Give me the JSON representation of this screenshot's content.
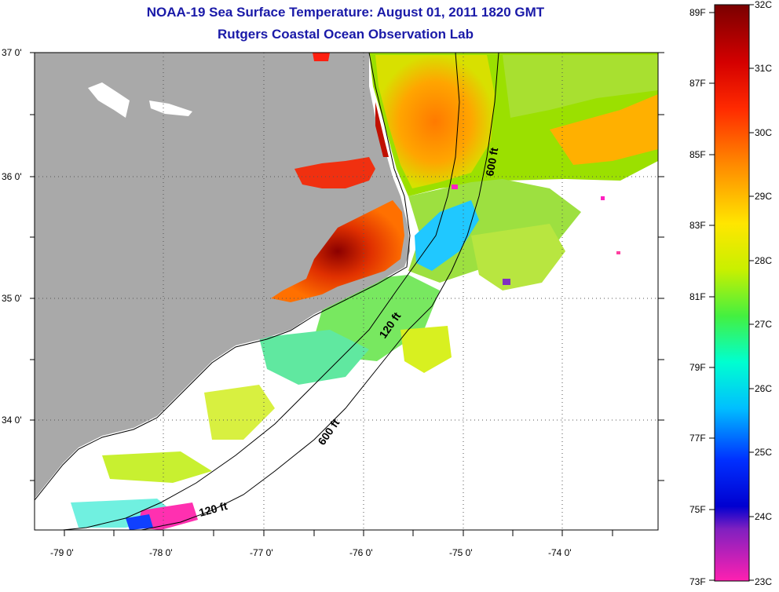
{
  "title": "NOAA-19 Sea Surface Temperature:  August 01, 2011 1820 GMT",
  "subtitle": "Rutgers Coastal Ocean Observation Lab",
  "lat_labels": [
    "37 0'",
    "36 0'",
    "35 0'",
    "34 0'"
  ],
  "lon_labels": [
    "-79 0'",
    "-78 0'",
    "-77 0'",
    "-76 0'",
    "-75 0'",
    "-74 0'"
  ],
  "contour_labels": [
    "600 ft",
    "120 ft",
    "600 ft",
    "120 ft"
  ],
  "colorbar_f": [
    "89F",
    "87F",
    "85F",
    "83F",
    "81F",
    "79F",
    "77F",
    "75F",
    "73F"
  ],
  "colorbar_c": [
    "32C",
    "31C",
    "30C",
    "29C",
    "28C",
    "27C",
    "26C",
    "25C",
    "24C",
    "23C"
  ],
  "colors": {
    "land": "#a9a9a9",
    "title": "#1a1aa8",
    "colorbar": [
      "#8b0000",
      "#ff0000",
      "#ff8c00",
      "#ffff00",
      "#7cfc00",
      "#00ffff",
      "#00bfff",
      "#0000ff",
      "#800080",
      "#ff1493"
    ]
  }
}
